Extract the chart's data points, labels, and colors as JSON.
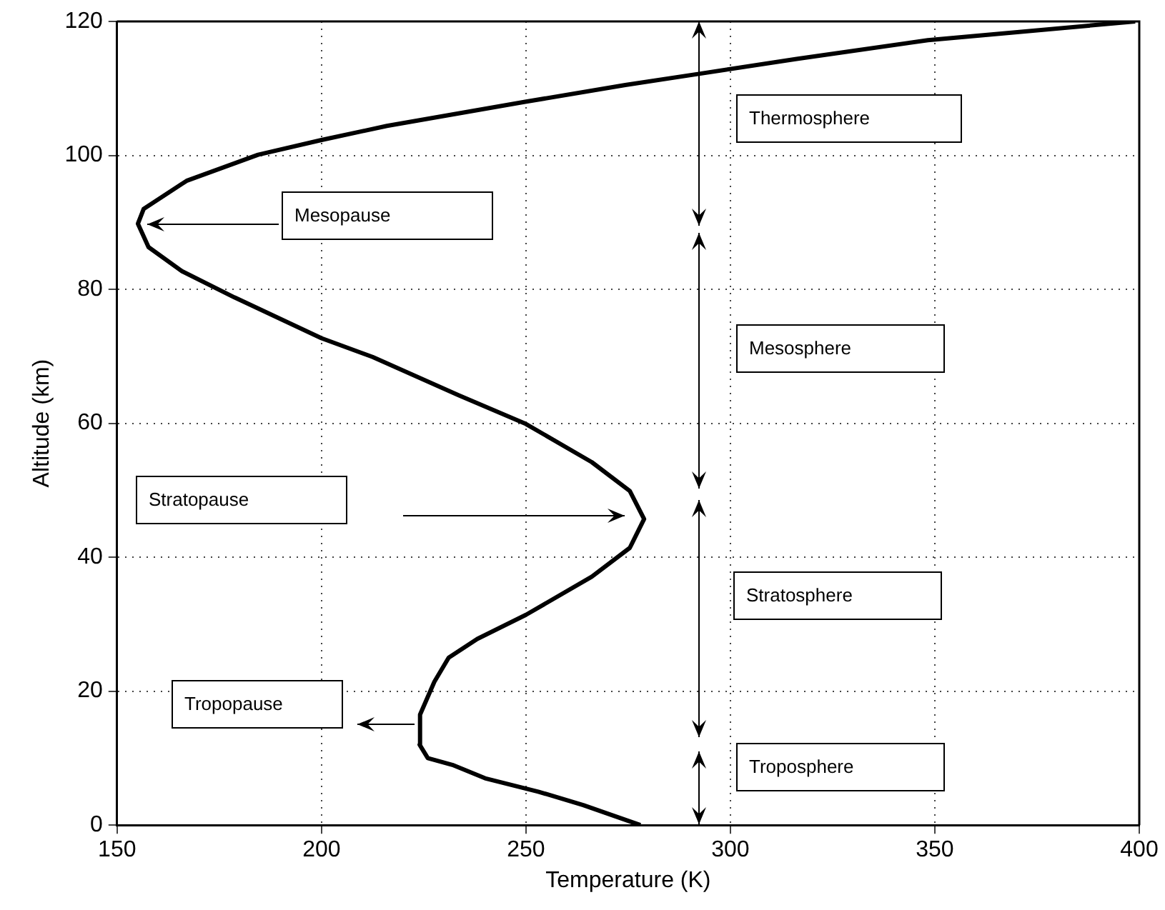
{
  "chart_data": {
    "type": "line",
    "xlabel": "Temperature (K)",
    "ylabel": "Altitude (km)",
    "series": [
      {
        "color": "#000000",
        "x": [
          278,
          264,
          253,
          240,
          232,
          226,
          224,
          224.1,
          227.6,
          231.1,
          238.1,
          250,
          266.1,
          275.4,
          278.9,
          275.4,
          266.1,
          250,
          233.5,
          212.5,
          200,
          178.7,
          165.9,
          157.7,
          155.1,
          156.5,
          167,
          184.5,
          200,
          216,
          249.8,
          274.3,
          292.6,
          316.2,
          348.3,
          399
        ],
        "values": [
          0,
          3,
          5,
          7,
          9,
          10,
          12,
          16.5,
          21.4,
          25,
          27.8,
          31.4,
          37.1,
          41.4,
          45.7,
          49.9,
          54.2,
          59.9,
          64.2,
          69.9,
          72.7,
          78.8,
          82.7,
          86.3,
          89.8,
          92,
          96.2,
          100.1,
          102.3,
          104.4,
          108,
          110.5,
          112.2,
          114.4,
          117.2,
          120
        ]
      }
    ],
    "xlim": [
      150,
      400
    ],
    "xticks": [
      150,
      200,
      250,
      300,
      350,
      400
    ],
    "ylim": [
      0,
      120
    ],
    "yticks": [
      0,
      20,
      40,
      60,
      80,
      100,
      120
    ],
    "grid": true,
    "legend": false,
    "marker": "none",
    "line_style": "solid",
    "annotations": [
      "Mesopause",
      "Stratopause",
      "Tropopause",
      "Thermosphere",
      "Mesosphere",
      "Stratosphere",
      "Troposphere"
    ]
  }
}
